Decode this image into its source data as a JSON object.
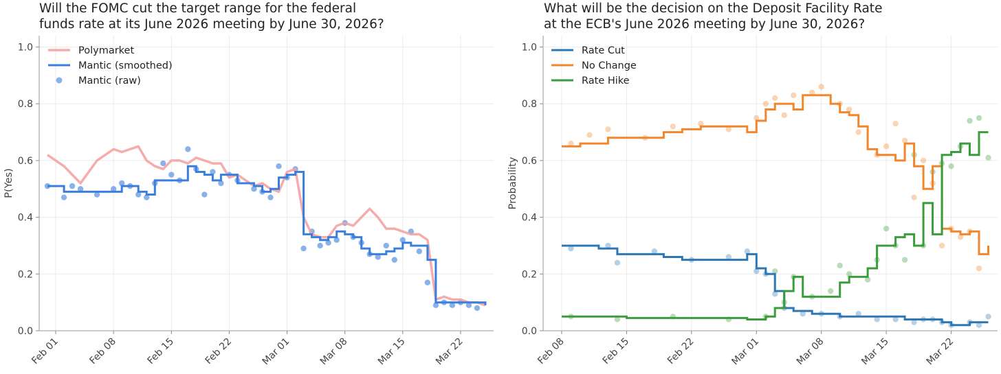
{
  "colors": {
    "polymarket": "#f4a3a3",
    "mantic": "#3b7fde",
    "rate_cut": "#2d78b4",
    "no_change": "#f2862a",
    "rate_hike": "#3a9c3a"
  },
  "chart_data": [
    {
      "type": "line",
      "title_lines": [
        "Will the FOMC cut the target range for the federal",
        "funds rate at its June 2026 meeting by June 30, 2026?"
      ],
      "ylabel": "P(Yes)",
      "xlabel": "",
      "x_axis": "date",
      "xlim": [
        "2026-01-30",
        "2026-03-26"
      ],
      "ylim": [
        0,
        1.04
      ],
      "y_ticks": [
        "0.0",
        "0.2",
        "0.4",
        "0.6",
        "0.8",
        "1.0"
      ],
      "x_ticks": [
        {
          "date": "2026-02-01",
          "label": "Feb 01"
        },
        {
          "date": "2026-02-08",
          "label": "Feb 08"
        },
        {
          "date": "2026-02-15",
          "label": "Feb 15"
        },
        {
          "date": "2026-02-22",
          "label": "Feb 22"
        },
        {
          "date": "2026-03-01",
          "label": "Mar 01"
        },
        {
          "date": "2026-03-08",
          "label": "Mar 08"
        },
        {
          "date": "2026-03-15",
          "label": "Mar 15"
        },
        {
          "date": "2026-03-22",
          "label": "Mar 22"
        }
      ],
      "grid": true,
      "legend_position": "top-left",
      "series": [
        {
          "name": "Polymarket",
          "style": "line",
          "color": "#f4a3a3",
          "x": [
            "2026-01-31",
            "2026-02-01",
            "2026-02-02",
            "2026-02-03",
            "2026-02-04",
            "2026-02-05",
            "2026-02-06",
            "2026-02-07",
            "2026-02-08",
            "2026-02-09",
            "2026-02-10",
            "2026-02-11",
            "2026-02-12",
            "2026-02-13",
            "2026-02-14",
            "2026-02-15",
            "2026-02-16",
            "2026-02-17",
            "2026-02-18",
            "2026-02-19",
            "2026-02-20",
            "2026-02-21",
            "2026-02-22",
            "2026-02-23",
            "2026-02-24",
            "2026-02-25",
            "2026-02-26",
            "2026-02-27",
            "2026-02-28",
            "2026-03-01",
            "2026-03-02",
            "2026-03-03",
            "2026-03-04",
            "2026-03-05",
            "2026-03-06",
            "2026-03-07",
            "2026-03-08",
            "2026-03-09",
            "2026-03-10",
            "2026-03-11",
            "2026-03-12",
            "2026-03-13",
            "2026-03-14",
            "2026-03-15",
            "2026-03-16",
            "2026-03-17",
            "2026-03-18",
            "2026-03-19",
            "2026-03-20",
            "2026-03-21",
            "2026-03-22",
            "2026-03-23",
            "2026-03-24",
            "2026-03-25"
          ],
          "y": [
            0.62,
            0.6,
            0.58,
            0.55,
            0.52,
            0.56,
            0.6,
            0.62,
            0.64,
            0.63,
            0.64,
            0.65,
            0.6,
            0.58,
            0.57,
            0.6,
            0.6,
            0.59,
            0.61,
            0.6,
            0.59,
            0.59,
            0.54,
            0.55,
            0.53,
            0.51,
            0.52,
            0.5,
            0.49,
            0.56,
            0.57,
            0.4,
            0.34,
            0.33,
            0.33,
            0.37,
            0.38,
            0.37,
            0.4,
            0.43,
            0.4,
            0.36,
            0.36,
            0.35,
            0.34,
            0.34,
            0.32,
            0.11,
            0.12,
            0.11,
            0.11,
            0.1,
            0.1,
            0.09
          ]
        },
        {
          "name": "Mantic (smoothed)",
          "style": "step",
          "color": "#3b7fde",
          "x": [
            "2026-01-31",
            "2026-02-02",
            "2026-02-05",
            "2026-02-09",
            "2026-02-11",
            "2026-02-12",
            "2026-02-13",
            "2026-02-14",
            "2026-02-17",
            "2026-02-18",
            "2026-02-19",
            "2026-02-20",
            "2026-02-21",
            "2026-02-23",
            "2026-02-25",
            "2026-02-26",
            "2026-02-27",
            "2026-02-28",
            "2026-03-01",
            "2026-03-02",
            "2026-03-03",
            "2026-03-04",
            "2026-03-05",
            "2026-03-06",
            "2026-03-07",
            "2026-03-08",
            "2026-03-09",
            "2026-03-10",
            "2026-03-11",
            "2026-03-12",
            "2026-03-13",
            "2026-03-14",
            "2026-03-15",
            "2026-03-16",
            "2026-03-17",
            "2026-03-18",
            "2026-03-19",
            "2026-03-20",
            "2026-03-22",
            "2026-03-25"
          ],
          "y": [
            0.51,
            0.49,
            0.49,
            0.51,
            0.49,
            0.48,
            0.53,
            0.53,
            0.58,
            0.56,
            0.55,
            0.53,
            0.55,
            0.52,
            0.51,
            0.49,
            0.5,
            0.54,
            0.55,
            0.56,
            0.34,
            0.33,
            0.32,
            0.33,
            0.35,
            0.34,
            0.33,
            0.29,
            0.27,
            0.27,
            0.28,
            0.29,
            0.31,
            0.3,
            0.3,
            0.25,
            0.1,
            0.1,
            0.1,
            0.09
          ]
        },
        {
          "name": "Mantic (raw)",
          "style": "scatter",
          "color": "#3b7fde",
          "x": [
            "2026-01-31",
            "2026-02-02",
            "2026-02-03",
            "2026-02-04",
            "2026-02-06",
            "2026-02-08",
            "2026-02-09",
            "2026-02-10",
            "2026-02-11",
            "2026-02-12",
            "2026-02-13",
            "2026-02-14",
            "2026-02-15",
            "2026-02-16",
            "2026-02-17",
            "2026-02-18",
            "2026-02-19",
            "2026-02-20",
            "2026-02-21",
            "2026-02-22",
            "2026-02-23",
            "2026-02-25",
            "2026-02-26",
            "2026-02-27",
            "2026-02-28",
            "2026-03-01",
            "2026-03-02",
            "2026-03-03",
            "2026-03-04",
            "2026-03-05",
            "2026-03-06",
            "2026-03-07",
            "2026-03-08",
            "2026-03-09",
            "2026-03-10",
            "2026-03-11",
            "2026-03-12",
            "2026-03-13",
            "2026-03-14",
            "2026-03-15",
            "2026-03-16",
            "2026-03-17",
            "2026-03-18",
            "2026-03-19",
            "2026-03-20",
            "2026-03-21",
            "2026-03-22",
            "2026-03-23",
            "2026-03-24"
          ],
          "y": [
            0.51,
            0.47,
            0.51,
            0.5,
            0.48,
            0.5,
            0.52,
            0.51,
            0.48,
            0.47,
            0.52,
            0.59,
            0.55,
            0.53,
            0.64,
            0.57,
            0.48,
            0.56,
            0.52,
            0.55,
            0.53,
            0.5,
            0.49,
            0.47,
            0.58,
            0.54,
            0.57,
            0.29,
            0.35,
            0.3,
            0.31,
            0.32,
            0.38,
            0.33,
            0.31,
            0.27,
            0.26,
            0.3,
            0.25,
            0.32,
            0.35,
            0.28,
            0.17,
            0.09,
            0.1,
            0.09,
            0.1,
            0.09,
            0.08
          ]
        }
      ]
    },
    {
      "type": "line",
      "title_lines": [
        "What will be the decision on the Deposit Facility Rate",
        "at the ECB's June 2026 meeting by June 30, 2026?"
      ],
      "ylabel": "Probability",
      "xlabel": "",
      "x_axis": "date",
      "xlim": [
        "2026-02-06",
        "2026-03-27"
      ],
      "ylim": [
        0,
        1.04
      ],
      "y_ticks": [
        "0.0",
        "0.2",
        "0.4",
        "0.6",
        "0.8",
        "1.0"
      ],
      "x_ticks": [
        {
          "date": "2026-02-08",
          "label": "Feb 08"
        },
        {
          "date": "2026-02-15",
          "label": "Feb 15"
        },
        {
          "date": "2026-02-22",
          "label": "Feb 22"
        },
        {
          "date": "2026-03-01",
          "label": "Mar 01"
        },
        {
          "date": "2026-03-08",
          "label": "Mar 08"
        },
        {
          "date": "2026-03-15",
          "label": "Mar 15"
        },
        {
          "date": "2026-03-22",
          "label": "Mar 22"
        }
      ],
      "grid": true,
      "legend_position": "top-left",
      "series": [
        {
          "name": "Rate Cut",
          "style": "step",
          "color": "#2d78b4",
          "x": [
            "2026-02-08",
            "2026-02-12",
            "2026-02-14",
            "2026-02-19",
            "2026-02-21",
            "2026-02-25",
            "2026-02-28",
            "2026-03-01",
            "2026-03-02",
            "2026-03-03",
            "2026-03-04",
            "2026-03-05",
            "2026-03-07",
            "2026-03-10",
            "2026-03-14",
            "2026-03-17",
            "2026-03-19",
            "2026-03-21",
            "2026-03-22",
            "2026-03-24",
            "2026-03-26"
          ],
          "y": [
            0.3,
            0.29,
            0.27,
            0.26,
            0.25,
            0.25,
            0.27,
            0.22,
            0.2,
            0.14,
            0.08,
            0.07,
            0.06,
            0.05,
            0.05,
            0.04,
            0.04,
            0.03,
            0.02,
            0.03,
            0.03
          ]
        },
        {
          "name": "No Change",
          "style": "step",
          "color": "#f2862a",
          "x": [
            "2026-02-08",
            "2026-02-10",
            "2026-02-13",
            "2026-02-19",
            "2026-02-21",
            "2026-02-23",
            "2026-02-28",
            "2026-03-01",
            "2026-03-02",
            "2026-03-03",
            "2026-03-04",
            "2026-03-05",
            "2026-03-06",
            "2026-03-09",
            "2026-03-10",
            "2026-03-11",
            "2026-03-12",
            "2026-03-13",
            "2026-03-14",
            "2026-03-16",
            "2026-03-17",
            "2026-03-18",
            "2026-03-19",
            "2026-03-20",
            "2026-03-21",
            "2026-03-22",
            "2026-03-23",
            "2026-03-24",
            "2026-03-25",
            "2026-03-26"
          ],
          "y": [
            0.65,
            0.66,
            0.68,
            0.7,
            0.71,
            0.72,
            0.7,
            0.74,
            0.78,
            0.8,
            0.8,
            0.78,
            0.83,
            0.8,
            0.77,
            0.76,
            0.72,
            0.64,
            0.62,
            0.6,
            0.66,
            0.58,
            0.5,
            0.58,
            0.36,
            0.35,
            0.34,
            0.35,
            0.27,
            0.3
          ]
        },
        {
          "name": "Rate Hike",
          "style": "step",
          "color": "#3a9c3a",
          "x": [
            "2026-02-08",
            "2026-02-15",
            "2026-02-22",
            "2026-02-28",
            "2026-03-02",
            "2026-03-03",
            "2026-03-04",
            "2026-03-05",
            "2026-03-06",
            "2026-03-09",
            "2026-03-10",
            "2026-03-11",
            "2026-03-12",
            "2026-03-13",
            "2026-03-14",
            "2026-03-16",
            "2026-03-17",
            "2026-03-18",
            "2026-03-19",
            "2026-03-20",
            "2026-03-21",
            "2026-03-22",
            "2026-03-23",
            "2026-03-24",
            "2026-03-25",
            "2026-03-26"
          ],
          "y": [
            0.05,
            0.045,
            0.045,
            0.04,
            0.05,
            0.08,
            0.14,
            0.19,
            0.12,
            0.12,
            0.17,
            0.19,
            0.19,
            0.22,
            0.3,
            0.33,
            0.34,
            0.3,
            0.45,
            0.34,
            0.62,
            0.63,
            0.66,
            0.62,
            0.7,
            0.7
          ]
        },
        {
          "name": "",
          "style": "scatter",
          "color": "#2d78b4",
          "x": [
            "2026-02-09",
            "2026-02-13",
            "2026-02-14",
            "2026-02-18",
            "2026-02-22",
            "2026-02-26",
            "2026-02-28",
            "2026-03-01",
            "2026-03-02",
            "2026-03-03",
            "2026-03-04",
            "2026-03-06",
            "2026-03-08",
            "2026-03-10",
            "2026-03-12",
            "2026-03-14",
            "2026-03-16",
            "2026-03-18",
            "2026-03-19",
            "2026-03-20",
            "2026-03-21",
            "2026-03-22",
            "2026-03-24",
            "2026-03-25",
            "2026-03-26"
          ],
          "y": [
            0.29,
            0.3,
            0.24,
            0.28,
            0.25,
            0.26,
            0.28,
            0.21,
            0.2,
            0.13,
            0.08,
            0.06,
            0.06,
            0.05,
            0.06,
            0.04,
            0.04,
            0.03,
            0.04,
            0.04,
            0.03,
            0.02,
            0.03,
            0.02,
            0.05
          ]
        },
        {
          "name": "",
          "style": "scatter",
          "color": "#f2862a",
          "x": [
            "2026-02-09",
            "2026-02-11",
            "2026-02-13",
            "2026-02-17",
            "2026-02-20",
            "2026-02-23",
            "2026-02-26",
            "2026-03-01",
            "2026-03-02",
            "2026-03-03",
            "2026-03-04",
            "2026-03-05",
            "2026-03-07",
            "2026-03-08",
            "2026-03-10",
            "2026-03-11",
            "2026-03-12",
            "2026-03-14",
            "2026-03-15",
            "2026-03-16",
            "2026-03-17",
            "2026-03-18",
            "2026-03-19",
            "2026-03-20",
            "2026-03-21",
            "2026-03-22",
            "2026-03-23",
            "2026-03-24",
            "2026-03-25"
          ],
          "y": [
            0.66,
            0.69,
            0.71,
            0.68,
            0.72,
            0.73,
            0.71,
            0.75,
            0.8,
            0.82,
            0.76,
            0.83,
            0.84,
            0.86,
            0.8,
            0.78,
            0.7,
            0.62,
            0.65,
            0.73,
            0.67,
            0.47,
            0.6,
            0.52,
            0.3,
            0.36,
            0.33,
            0.35,
            0.22
          ]
        },
        {
          "name": "",
          "style": "scatter",
          "color": "#3a9c3a",
          "x": [
            "2026-02-09",
            "2026-02-14",
            "2026-02-20",
            "2026-02-26",
            "2026-03-02",
            "2026-03-03",
            "2026-03-04",
            "2026-03-05",
            "2026-03-07",
            "2026-03-09",
            "2026-03-10",
            "2026-03-11",
            "2026-03-13",
            "2026-03-14",
            "2026-03-15",
            "2026-03-16",
            "2026-03-17",
            "2026-03-18",
            "2026-03-19",
            "2026-03-20",
            "2026-03-21",
            "2026-03-22",
            "2026-03-23",
            "2026-03-24",
            "2026-03-25",
            "2026-03-26"
          ],
          "y": [
            0.05,
            0.04,
            0.05,
            0.04,
            0.05,
            0.21,
            0.1,
            0.19,
            0.12,
            0.14,
            0.23,
            0.2,
            0.18,
            0.25,
            0.36,
            0.3,
            0.25,
            0.62,
            0.3,
            0.56,
            0.59,
            0.58,
            0.65,
            0.74,
            0.75,
            0.61
          ]
        }
      ]
    }
  ]
}
